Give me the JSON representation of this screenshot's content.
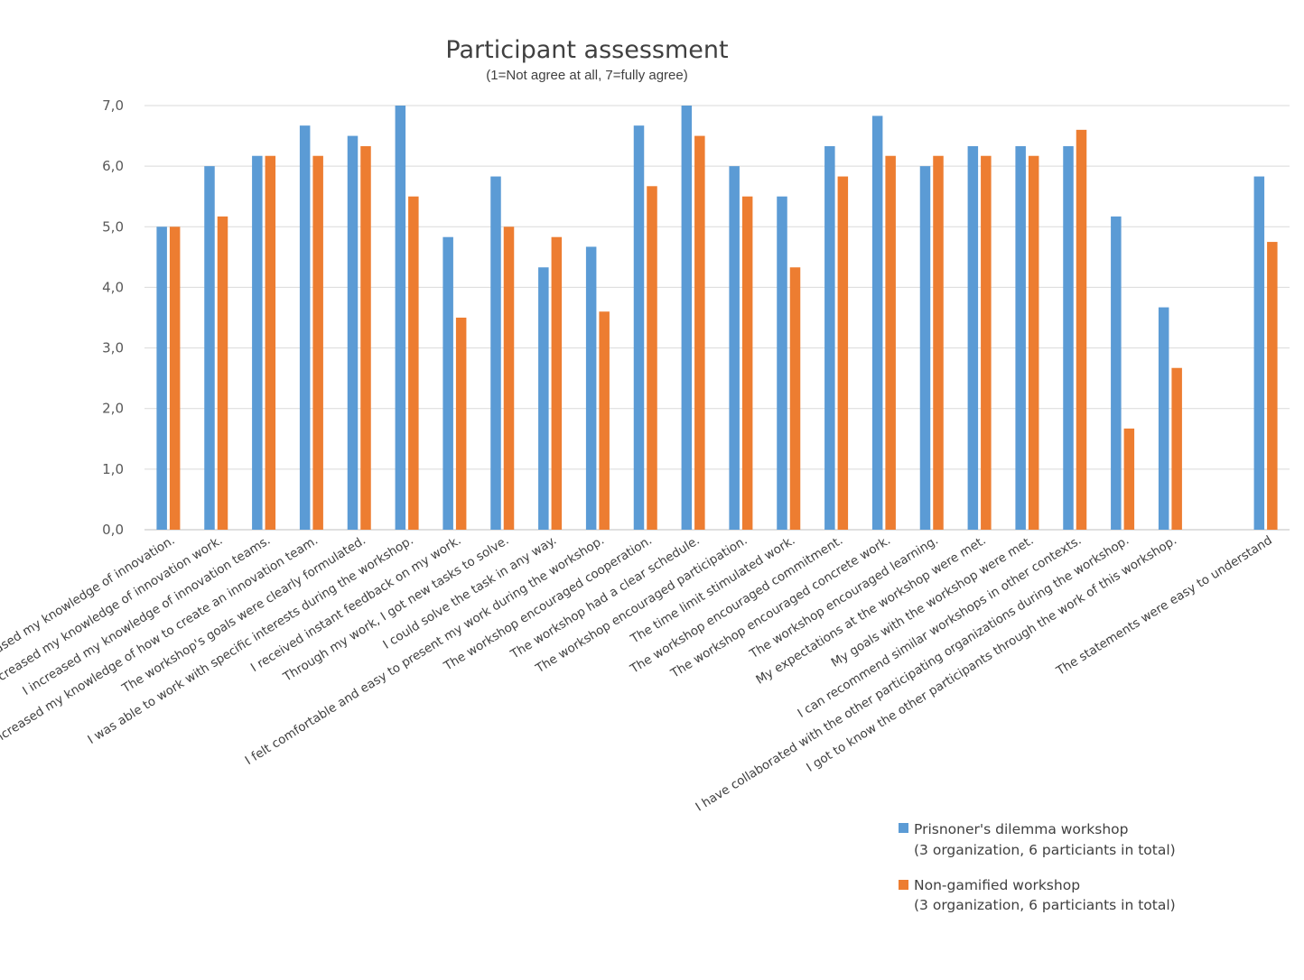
{
  "chart_data": {
    "type": "bar",
    "title": "Participant assessment",
    "subtitle": "(1=Not agree at all, 7=fully agree)",
    "ylim": [
      0,
      7
    ],
    "yticks": [
      "0,0",
      "1,0",
      "2,0",
      "3,0",
      "4,0",
      "5,0",
      "6,0",
      "7,0"
    ],
    "grid": true,
    "legend_position": "bottom-right",
    "categories": [
      "I increased my knowledge of innovation.",
      "I increased my knowledge of innovation work.",
      "I increased my knowledge of innovation teams.",
      "I increased my knowledge of how to create an innovation team.",
      "The workshop's goals were clearly formulated.",
      "I was able to work with specific interests during the workshop.",
      "I received instant feedback on my work.",
      "Through my work, I got new tasks to solve.",
      "I could solve the task in any way.",
      "I felt comfortable and easy to present my work during the workshop.",
      "The workshop encouraged cooperation.",
      "The workshop had a clear schedule.",
      "The workshop encouraged participation.",
      "The time limit stimulated work.",
      "The workshop encouraged commitment.",
      "The workshop encouraged concrete work.",
      "The workshop encouraged learning.",
      "My expectations at the workshop were met.",
      "My goals with the workshop were met.",
      "I can recommend similar workshops in other contexts.",
      "I have collaborated with the other participating organizations during the workshop.",
      "I got to know the other participants through the work of this workshop.",
      "",
      "The statements were easy to understand"
    ],
    "series": [
      {
        "name": "Prisnoner's dilemma workshop",
        "name_line2": "(3 organization, 6 particiants in total)",
        "color": "#5b9bd5",
        "values": [
          5.0,
          6.0,
          6.17,
          6.67,
          6.5,
          7.0,
          4.83,
          5.83,
          4.33,
          4.67,
          6.67,
          7.0,
          6.0,
          5.5,
          6.33,
          6.83,
          6.0,
          6.33,
          6.33,
          6.33,
          5.17,
          3.67,
          null,
          5.83
        ]
      },
      {
        "name": "Non-gamified workshop",
        "name_line2": "(3 organization, 6 particiants in total)",
        "color": "#ed7d31",
        "values": [
          5.0,
          5.17,
          6.17,
          6.17,
          6.33,
          5.5,
          3.5,
          5.0,
          4.83,
          3.6,
          5.67,
          6.5,
          5.5,
          4.33,
          5.83,
          6.17,
          6.17,
          6.17,
          6.17,
          6.6,
          1.67,
          2.67,
          null,
          4.75
        ]
      }
    ]
  }
}
